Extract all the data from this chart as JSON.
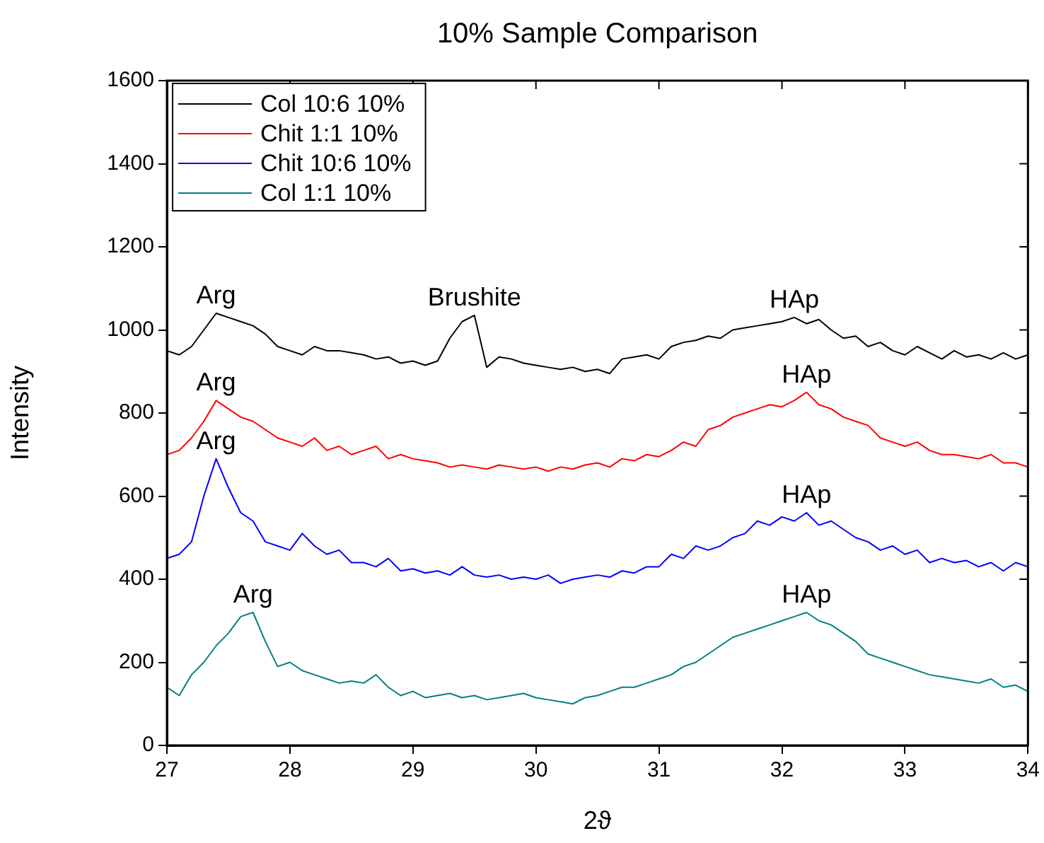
{
  "chart_data": {
    "type": "line",
    "title": "10% Sample Comparison",
    "xlabel": "2ϑ",
    "ylabel": "Intensity",
    "x": [
      27.0,
      27.1,
      27.2,
      27.3,
      27.4,
      27.5,
      27.6,
      27.7,
      27.8,
      27.9,
      28.0,
      28.1,
      28.2,
      28.3,
      28.4,
      28.5,
      28.6,
      28.7,
      28.8,
      28.9,
      29.0,
      29.1,
      29.2,
      29.3,
      29.4,
      29.5,
      29.6,
      29.7,
      29.8,
      29.9,
      30.0,
      30.1,
      30.2,
      30.3,
      30.4,
      30.5,
      30.6,
      30.7,
      30.8,
      30.9,
      31.0,
      31.1,
      31.2,
      31.3,
      31.4,
      31.5,
      31.6,
      31.7,
      31.8,
      31.9,
      32.0,
      32.1,
      32.2,
      32.3,
      32.4,
      32.5,
      32.6,
      32.7,
      32.8,
      32.9,
      33.0,
      33.1,
      33.2,
      33.3,
      33.4,
      33.5,
      33.6,
      33.7,
      33.8,
      33.9,
      34.0
    ],
    "series": [
      {
        "name": "Col 10:6 10%",
        "color": "#000000",
        "values": [
          950,
          940,
          960,
          1000,
          1040,
          1030,
          1020,
          1010,
          990,
          960,
          950,
          940,
          960,
          950,
          950,
          945,
          940,
          930,
          935,
          920,
          925,
          915,
          925,
          980,
          1020,
          1035,
          910,
          935,
          930,
          920,
          915,
          910,
          905,
          910,
          900,
          905,
          895,
          930,
          935,
          940,
          930,
          960,
          970,
          975,
          985,
          980,
          1000,
          1005,
          1010,
          1015,
          1020,
          1030,
          1015,
          1025,
          1000,
          980,
          985,
          960,
          970,
          950,
          940,
          960,
          945,
          930,
          950,
          935,
          940,
          930,
          945,
          930,
          940
        ]
      },
      {
        "name": "Chit 1:1 10%",
        "color": "#ff0000",
        "values": [
          700,
          710,
          740,
          780,
          830,
          810,
          790,
          780,
          760,
          740,
          730,
          720,
          740,
          710,
          720,
          700,
          710,
          720,
          690,
          700,
          690,
          685,
          680,
          670,
          675,
          670,
          665,
          675,
          670,
          665,
          670,
          660,
          670,
          665,
          675,
          680,
          670,
          690,
          685,
          700,
          695,
          710,
          730,
          720,
          760,
          770,
          790,
          800,
          810,
          820,
          815,
          830,
          850,
          820,
          810,
          790,
          780,
          770,
          740,
          730,
          720,
          730,
          710,
          700,
          700,
          695,
          690,
          700,
          680,
          680,
          670
        ]
      },
      {
        "name": "Chit 10:6 10%",
        "color": "#0000ff",
        "values": [
          450,
          460,
          490,
          600,
          690,
          620,
          560,
          540,
          490,
          480,
          470,
          510,
          480,
          460,
          470,
          440,
          440,
          430,
          450,
          420,
          425,
          415,
          420,
          410,
          430,
          410,
          405,
          410,
          400,
          405,
          400,
          410,
          390,
          400,
          405,
          410,
          405,
          420,
          415,
          430,
          430,
          460,
          450,
          480,
          470,
          480,
          500,
          510,
          540,
          530,
          550,
          540,
          560,
          530,
          540,
          520,
          500,
          490,
          470,
          480,
          460,
          470,
          440,
          450,
          440,
          445,
          430,
          440,
          420,
          440,
          430
        ]
      },
      {
        "name": "Col 1:1 10%",
        "color": "#008080",
        "values": [
          140,
          120,
          170,
          200,
          240,
          270,
          310,
          320,
          250,
          190,
          200,
          180,
          170,
          160,
          150,
          155,
          150,
          170,
          140,
          120,
          130,
          115,
          120,
          125,
          115,
          120,
          110,
          115,
          120,
          125,
          115,
          110,
          105,
          100,
          115,
          120,
          130,
          140,
          140,
          150,
          160,
          170,
          190,
          200,
          220,
          240,
          260,
          270,
          280,
          290,
          300,
          310,
          320,
          300,
          290,
          270,
          250,
          220,
          210,
          200,
          190,
          180,
          170,
          165,
          160,
          155,
          150,
          160,
          140,
          145,
          130
        ]
      }
    ],
    "xlim": [
      27,
      34
    ],
    "xticks": [
      27,
      28,
      29,
      30,
      31,
      32,
      33,
      34
    ],
    "ylim": [
      0,
      1600
    ],
    "yticks": [
      0,
      200,
      400,
      600,
      800,
      1000,
      1200,
      1400,
      1600
    ],
    "grid": false,
    "legend": "top left",
    "marker": "none",
    "line_style": "solid",
    "annotations": [
      {
        "text": "Arg",
        "x": 27.4,
        "y": 1040
      },
      {
        "text": "Brushite",
        "x": 29.5,
        "y": 1035
      },
      {
        "text": "HAp",
        "x": 32.1,
        "y": 1030
      },
      {
        "text": "Arg",
        "x": 27.4,
        "y": 830
      },
      {
        "text": "HAp",
        "x": 32.2,
        "y": 850
      },
      {
        "text": "Arg",
        "x": 27.4,
        "y": 690
      },
      {
        "text": "HAp",
        "x": 32.2,
        "y": 560
      },
      {
        "text": "Arg",
        "x": 27.7,
        "y": 320
      },
      {
        "text": "HAp",
        "x": 32.2,
        "y": 320
      }
    ]
  }
}
